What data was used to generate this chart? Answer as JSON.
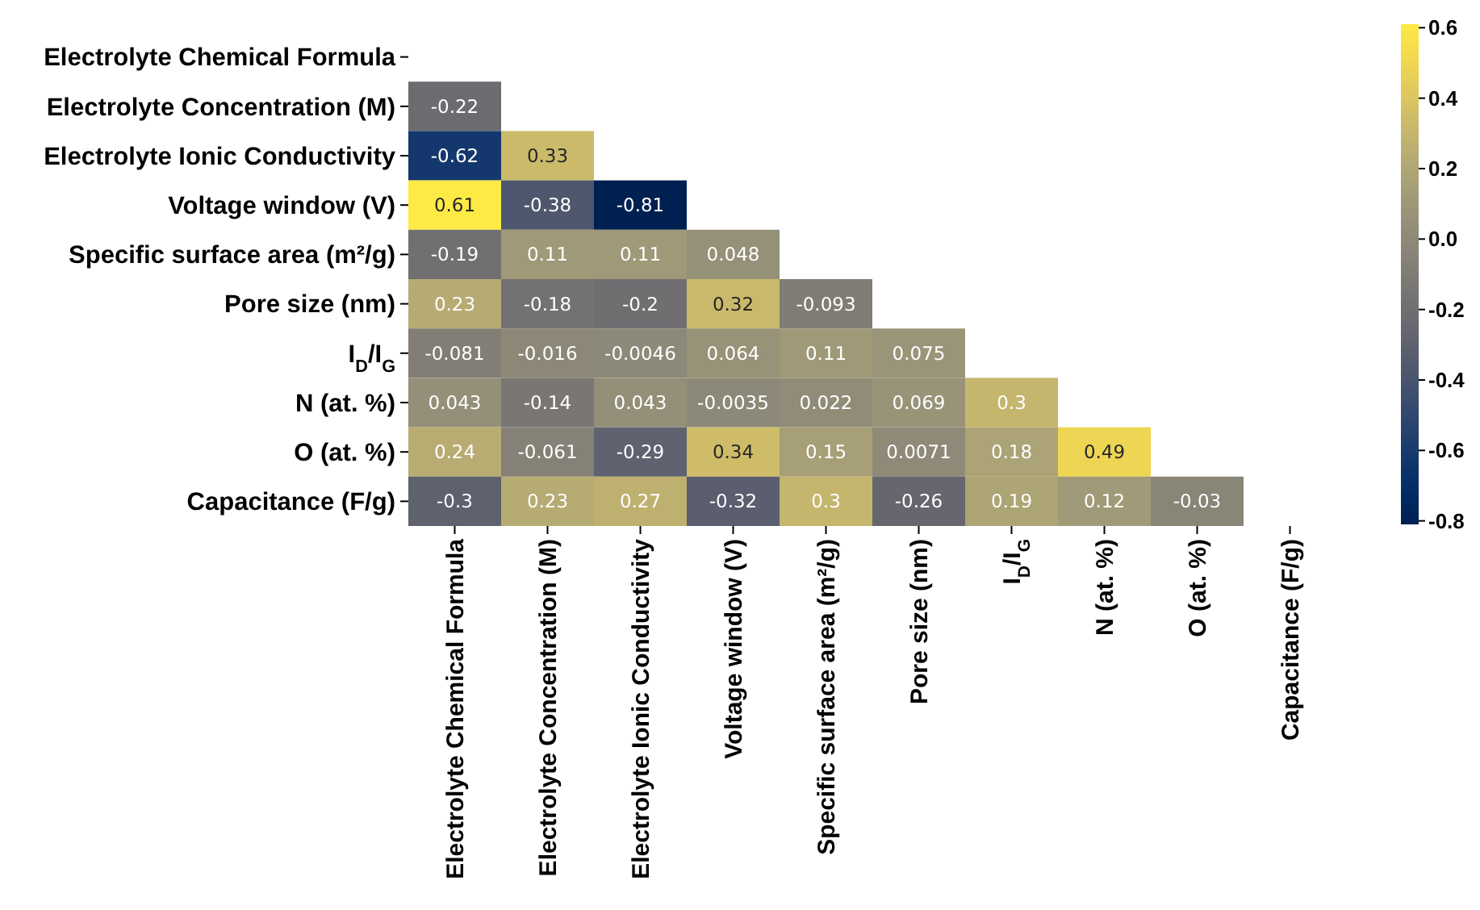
{
  "chart_data": {
    "type": "heatmap",
    "categories": [
      "Electrolyte Chemical Formula",
      "Electrolyte Concentration (M)",
      "Electrolyte Ionic Conductivity",
      "Voltage window (V)",
      "Specific surface area (m²/g)",
      "Pore size (nm)",
      "I$_{D}$/I$_{G}$",
      "N (at. %)",
      "O (at. %)",
      "Capacitance (F/g)"
    ],
    "y_categories": [
      "Electrolyte Chemical Formula",
      "Electrolyte Concentration (M)",
      "Electrolyte Ionic Conductivity",
      "Voltage window (V)",
      "Specific surface area (m²/g)",
      "Pore size (nm)",
      "I$_{D}$/I$_{G}$",
      "N (at. %)",
      "O (at. %)",
      "Capacitance (F/g)"
    ],
    "cells": [
      [
        null,
        null,
        null,
        null,
        null,
        null,
        null,
        null,
        null,
        null
      ],
      [
        -0.22,
        null,
        null,
        null,
        null,
        null,
        null,
        null,
        null,
        null
      ],
      [
        -0.62,
        0.33,
        null,
        null,
        null,
        null,
        null,
        null,
        null,
        null
      ],
      [
        0.61,
        -0.38,
        -0.81,
        null,
        null,
        null,
        null,
        null,
        null,
        null
      ],
      [
        -0.19,
        0.11,
        0.11,
        0.048,
        null,
        null,
        null,
        null,
        null,
        null
      ],
      [
        0.23,
        -0.18,
        -0.2,
        0.32,
        -0.093,
        null,
        null,
        null,
        null,
        null
      ],
      [
        -0.081,
        -0.016,
        -0.0046,
        0.064,
        0.11,
        0.075,
        null,
        null,
        null,
        null
      ],
      [
        0.043,
        -0.14,
        0.043,
        -0.0035,
        0.022,
        0.069,
        0.3,
        null,
        null,
        null
      ],
      [
        0.24,
        -0.061,
        -0.29,
        0.34,
        0.15,
        0.0071,
        0.18,
        0.49,
        null,
        null
      ],
      [
        -0.3,
        0.23,
        0.27,
        -0.32,
        0.3,
        -0.26,
        0.19,
        0.12,
        -0.03,
        null
      ]
    ],
    "data_labels": true,
    "clim": [
      -0.81,
      0.61
    ],
    "cticks": [
      {
        "value": 0.6,
        "label": "0.6"
      },
      {
        "value": 0.4,
        "label": "0.4"
      },
      {
        "value": 0.2,
        "label": "0.2"
      },
      {
        "value": 0.0,
        "label": "0.0"
      },
      {
        "value": -0.2,
        "label": "-0.2"
      },
      {
        "value": -0.4,
        "label": "-0.4"
      },
      {
        "value": -0.6,
        "label": "-0.6"
      },
      {
        "value": -0.8,
        "label": "-0.8"
      }
    ]
  }
}
